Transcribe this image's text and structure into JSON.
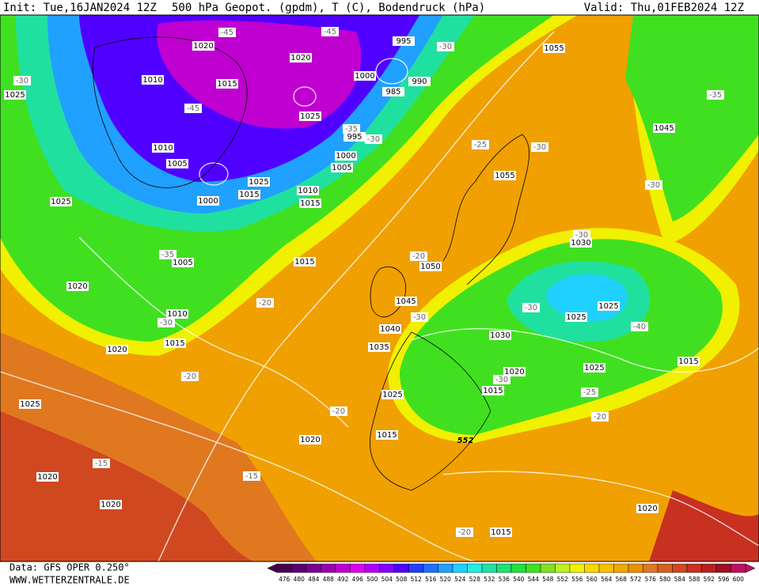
{
  "header": {
    "init": "Init: Tue,16JAN2024 12Z",
    "title": "500 hPa Geopot. (gpdm), T (C), Bodendruck (hPa)",
    "valid": "Valid: Thu,01FEB2024 12Z"
  },
  "footer": {
    "data": "Data: GFS OPER 0.250°",
    "site": "WWW.WETTERZENTRALE.DE"
  },
  "colorbar": {
    "values": [
      476,
      480,
      484,
      488,
      492,
      496,
      500,
      504,
      508,
      512,
      516,
      520,
      524,
      528,
      532,
      536,
      540,
      544,
      548,
      552,
      556,
      560,
      564,
      568,
      572,
      576,
      580,
      584,
      588,
      592,
      596,
      600
    ],
    "colors": [
      "#4a0050",
      "#5a0070",
      "#7a0090",
      "#9a00b0",
      "#c000d0",
      "#e000f0",
      "#b000ff",
      "#8000ff",
      "#5000ff",
      "#2040ff",
      "#2070ff",
      "#20a0ff",
      "#20d0ff",
      "#20f0e0",
      "#20e0a0",
      "#20e070",
      "#20e040",
      "#40e020",
      "#80e020",
      "#c0f020",
      "#f0f000",
      "#f8d800",
      "#f8c000",
      "#f0a800",
      "#e89000",
      "#e07820",
      "#d86020",
      "#d04820",
      "#c83020",
      "#b82020",
      "#a01020",
      "#c01060"
    ]
  },
  "map": {
    "pressure_labels": [
      "1020",
      "1020",
      "995",
      "1010",
      "1015",
      "1000",
      "990",
      "985",
      "1025",
      "995",
      "1010",
      "1005",
      "1000",
      "1005",
      "1000",
      "1015",
      "1025",
      "1010",
      "1015",
      "1025",
      "1025",
      "1005",
      "1015",
      "1020",
      "1010",
      "1015",
      "1020",
      "1055",
      "1045",
      "1055",
      "1030",
      "1050",
      "1045",
      "1040",
      "1035",
      "1030",
      "1025",
      "1025",
      "1020",
      "1015",
      "1025",
      "1015",
      "1025",
      "1015",
      "1020",
      "1025",
      "1020",
      "1020",
      "1020",
      "1015"
    ],
    "temperature_labels": [
      "-45",
      "-45",
      "-30",
      "-30",
      "-45",
      "-35",
      "-30",
      "-25",
      "-30",
      "-35",
      "-30",
      "-35",
      "-30",
      "-20",
      "-20",
      "-30",
      "-30",
      "-40",
      "-30",
      "-20",
      "-30",
      "-25",
      "-20",
      "-20",
      "-15",
      "-15",
      "-20"
    ],
    "geopotential_label": "552"
  }
}
